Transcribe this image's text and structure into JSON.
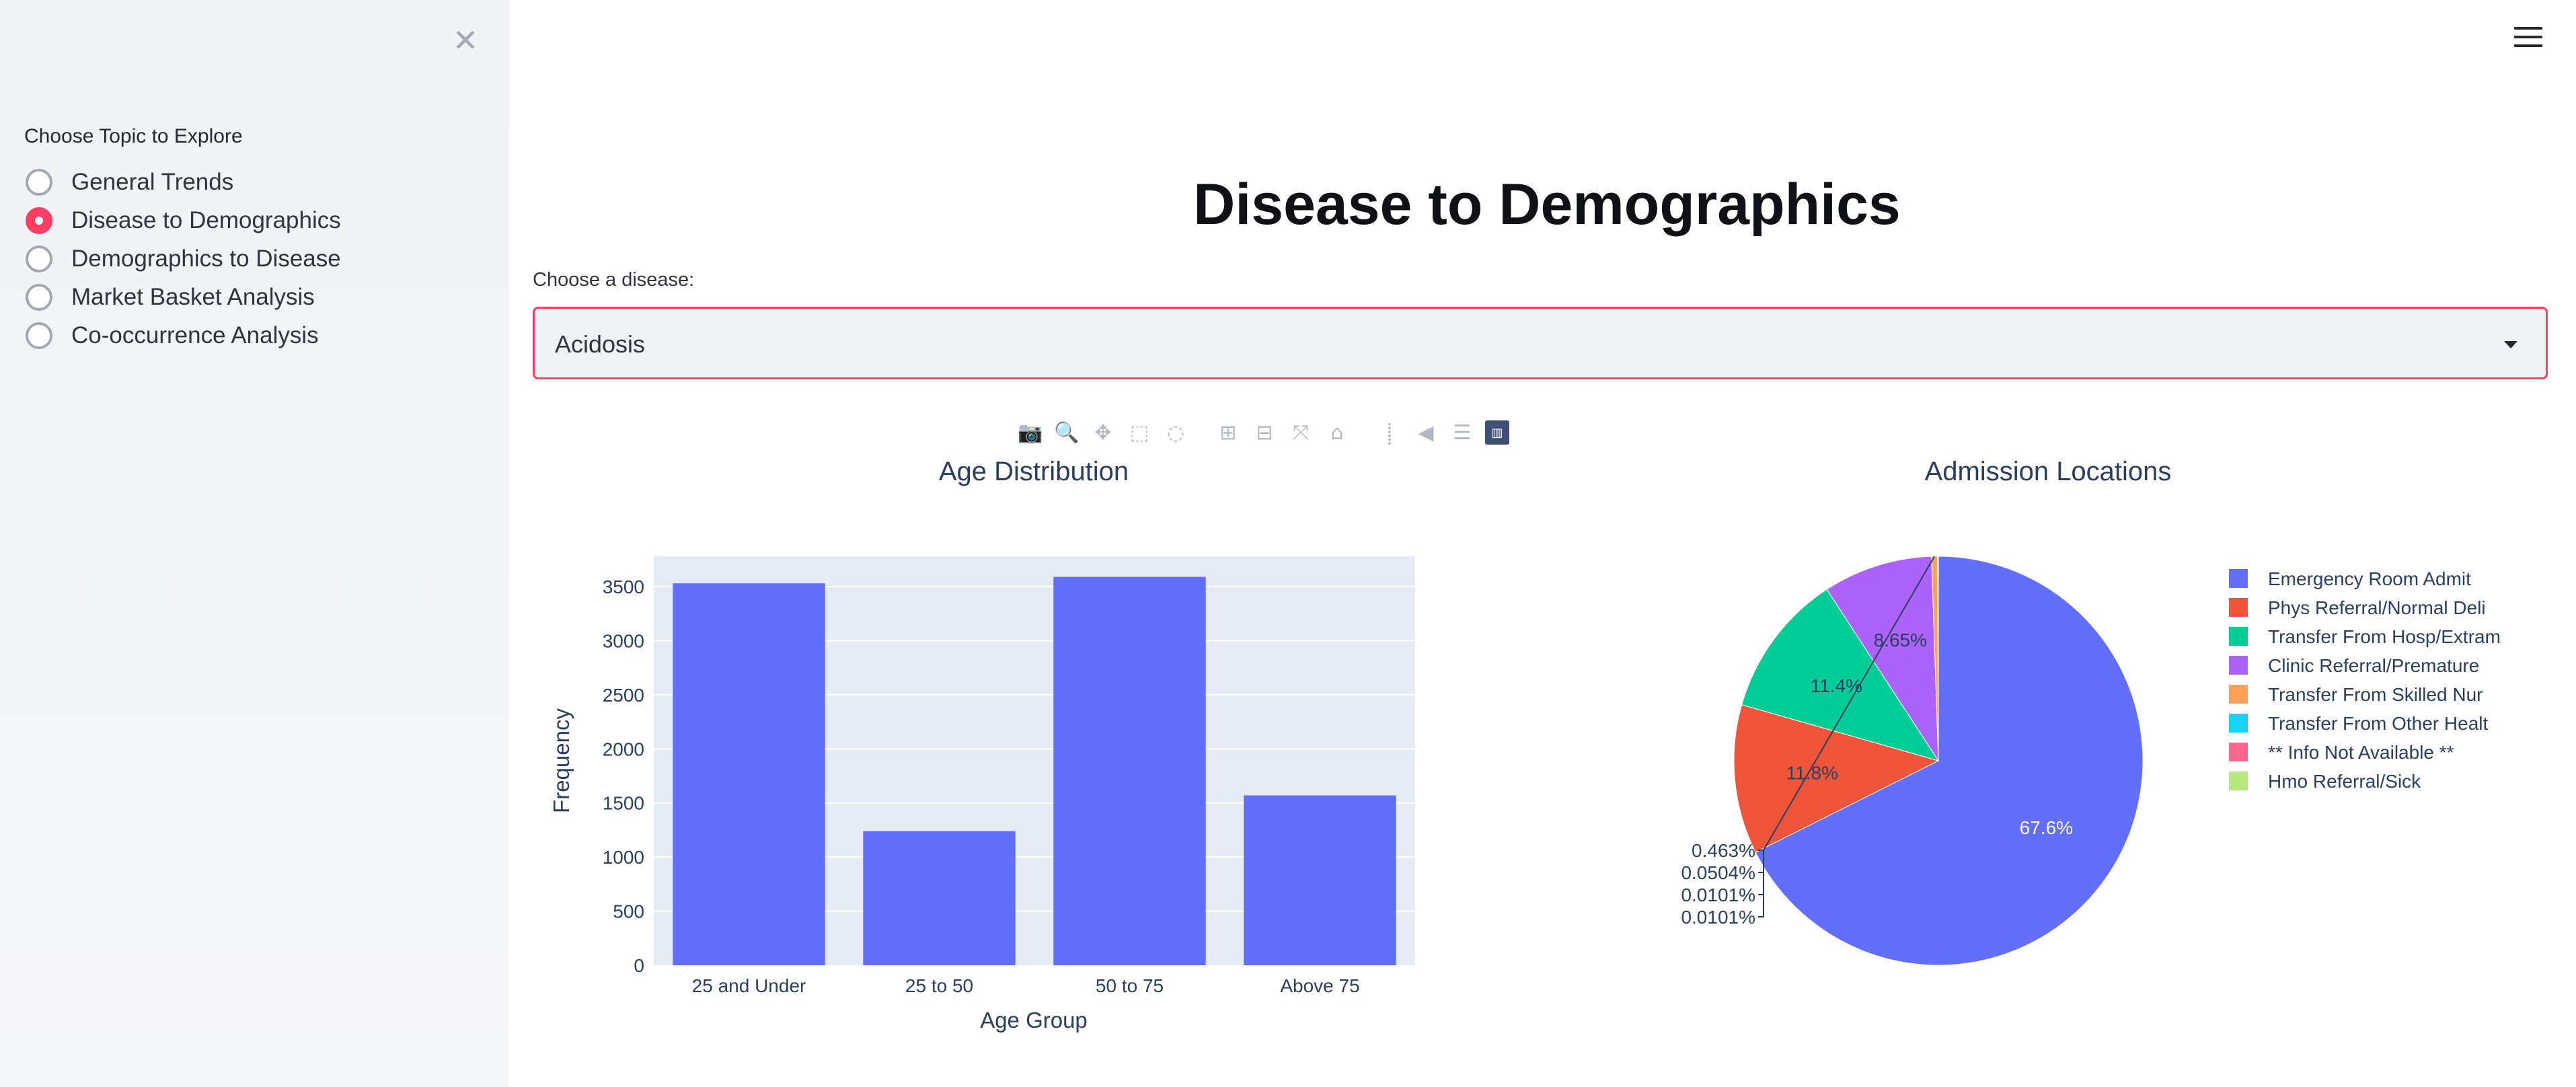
{
  "sidebar": {
    "close_icon": "close-icon",
    "topic_label": "Choose Topic to Explore",
    "options": [
      {
        "label": "General Trends",
        "checked": false
      },
      {
        "label": "Disease to Demographics",
        "checked": true
      },
      {
        "label": "Demographics to Disease",
        "checked": false
      },
      {
        "label": "Market Basket Analysis",
        "checked": false
      },
      {
        "label": "Co-occurrence Analysis",
        "checked": false
      }
    ]
  },
  "header": {
    "menu_icon": "hamburger-menu-icon"
  },
  "main": {
    "title": "Disease to Demographics",
    "select_label": "Choose a disease:",
    "select_value": "Acidosis"
  },
  "modebar": {
    "icons": [
      "camera-icon",
      "zoom-icon",
      "pan-icon",
      "box-select-icon",
      "lasso-icon",
      "zoom-in-icon",
      "zoom-out-icon",
      "autoscale-icon",
      "reset-axes-icon",
      "spike-lines-icon",
      "hover-closest-icon",
      "hover-compare-icon",
      "plotly-logo-icon"
    ]
  },
  "colors": {
    "accent": "#ff3e66",
    "bar": "#636efa",
    "plot_bg": "#e5ecf6",
    "text": "#2a3f5f"
  },
  "chart_data": [
    {
      "type": "bar",
      "title": "Age Distribution",
      "xlabel": "Age Group",
      "ylabel": "Frequency",
      "categories": [
        "25 and Under",
        "25 to 50",
        "50 to 75",
        "Above 75"
      ],
      "values": [
        3530,
        1240,
        3590,
        1570
      ],
      "ylim": [
        0,
        3780
      ],
      "yticks": [
        0,
        500,
        1000,
        1500,
        2000,
        2500,
        3000,
        3500
      ],
      "grid": true
    },
    {
      "type": "pie",
      "title": "Admission Locations",
      "legend_position": "right",
      "slices": [
        {
          "label": "Emergency Room Admit",
          "value": 67.6,
          "text": "67.6%",
          "color": "#636efa"
        },
        {
          "label": "Phys Referral/Normal Deli",
          "value": 11.8,
          "text": "11.8%",
          "color": "#ef553b"
        },
        {
          "label": "Transfer From Hosp/Extram",
          "value": 11.4,
          "text": "11.4%",
          "color": "#00cc96"
        },
        {
          "label": "Clinic Referral/Premature",
          "value": 8.65,
          "text": "8.65%",
          "color": "#ab63fa"
        },
        {
          "label": "Transfer From Skilled Nur",
          "value": 0.463,
          "text": "0.463%",
          "color": "#ffa15a"
        },
        {
          "label": "Transfer From Other Healt",
          "value": 0.0504,
          "text": "0.0504%",
          "color": "#19d3f3"
        },
        {
          "label": "** Info Not Available **",
          "value": 0.0101,
          "text": "0.0101%",
          "color": "#ff6692"
        },
        {
          "label": "Hmo Referral/Sick",
          "value": 0.0101,
          "text": "0.0101%",
          "color": "#b6e880"
        }
      ]
    }
  ]
}
